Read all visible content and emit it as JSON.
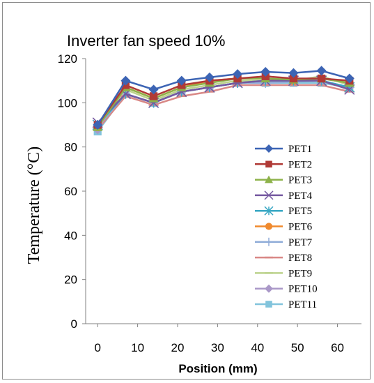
{
  "chart_data": {
    "type": "line",
    "title": "Inverter fan speed 10%",
    "xlabel": "Position (mm)",
    "ylabel": "Temperature (°C)",
    "xlim": [
      -3,
      66
    ],
    "ylim": [
      0,
      120
    ],
    "xticks": [
      0,
      10,
      20,
      30,
      40,
      50,
      60
    ],
    "yticks": [
      0,
      20,
      40,
      60,
      80,
      100,
      120
    ],
    "grid": false,
    "legend_position": "right",
    "x": [
      0,
      7,
      14,
      21,
      28,
      35,
      42,
      49,
      56,
      63
    ],
    "series": [
      {
        "name": "PET1",
        "color": "#3c64b4",
        "marker": "diamond",
        "values": [
          90,
          110,
          106,
          110,
          111.5,
          113,
          114,
          113.5,
          114.5,
          111
        ]
      },
      {
        "name": "PET2",
        "color": "#b03a36",
        "marker": "square",
        "values": [
          90,
          108,
          103,
          108,
          110,
          111,
          112,
          111,
          111,
          110
        ]
      },
      {
        "name": "PET3",
        "color": "#8db24a",
        "marker": "triangle",
        "values": [
          89,
          107,
          102,
          107,
          109,
          111,
          111,
          110.5,
          111,
          109
        ]
      },
      {
        "name": "PET4",
        "color": "#7558a0",
        "marker": "x",
        "values": [
          91,
          104,
          100,
          105,
          107,
          109,
          110,
          110,
          110,
          106
        ]
      },
      {
        "name": "PET5",
        "color": "#3aa8c4",
        "marker": "star",
        "values": [
          90,
          104,
          100,
          105,
          107,
          109,
          110,
          110,
          110,
          107
        ]
      },
      {
        "name": "PET6",
        "color": "#f08a2e",
        "marker": "circle",
        "values": [
          89,
          107,
          102,
          107,
          110,
          111,
          111,
          110,
          111,
          109
        ]
      },
      {
        "name": "PET7",
        "color": "#90acd8",
        "marker": "plus",
        "values": [
          89,
          104,
          100,
          105,
          107,
          109,
          109,
          109.5,
          110,
          107
        ]
      },
      {
        "name": "PET8",
        "color": "#d98886",
        "marker": "dash",
        "values": [
          88,
          103,
          99,
          103,
          105,
          108,
          108,
          108,
          108,
          105
        ]
      },
      {
        "name": "PET9",
        "color": "#bcd28c",
        "marker": "dash",
        "values": [
          88,
          106,
          101,
          106,
          108,
          110,
          110,
          110,
          112,
          108
        ]
      },
      {
        "name": "PET10",
        "color": "#aa98c8",
        "marker": "diamond",
        "values": [
          88,
          104,
          100,
          105,
          107,
          109,
          109.5,
          109.5,
          110,
          107
        ]
      },
      {
        "name": "PET11",
        "color": "#82c4dc",
        "marker": "square",
        "values": [
          87,
          104,
          100,
          105,
          107,
          109,
          109,
          109,
          109,
          107
        ]
      }
    ]
  }
}
